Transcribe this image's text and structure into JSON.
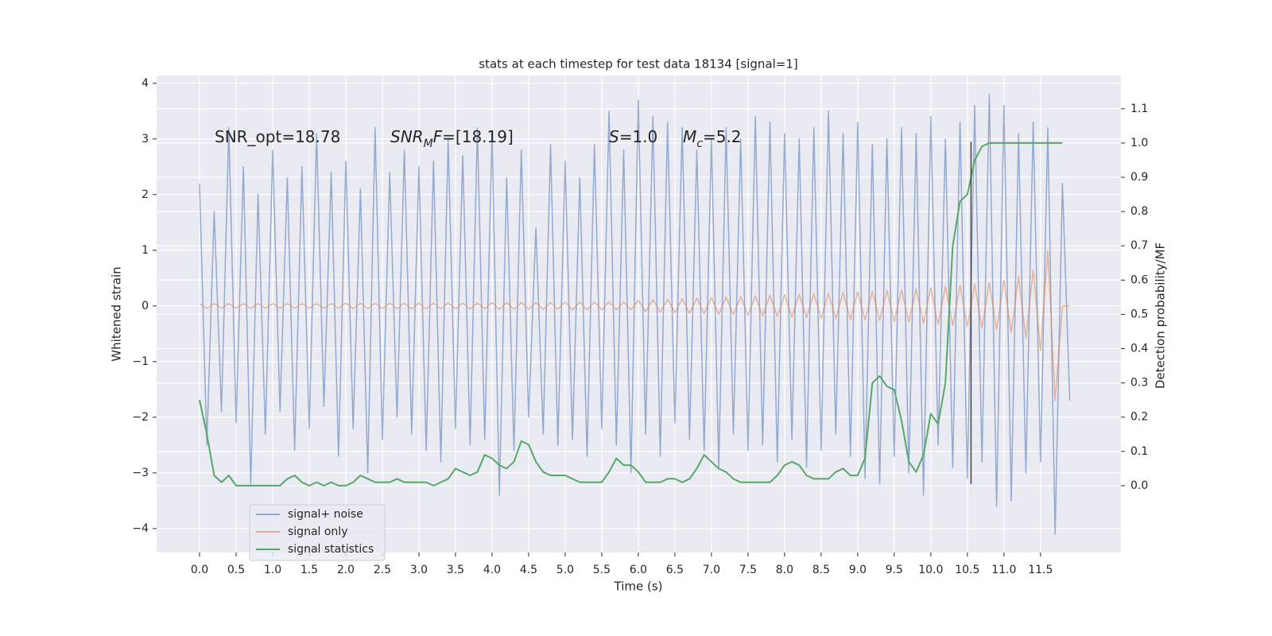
{
  "chart_data": {
    "type": "line",
    "title": "stats at each timestep for test data 18134 [signal=1]",
    "xlabel": "Time (s)",
    "ylabel": "Whitened strain",
    "y2label": "Detection probability/MF",
    "annotations": [
      {
        "text": "SNR_opt=18.78"
      },
      {
        "italic": "SNR",
        "sub": "M",
        "italic2": "F",
        "text": "=[18.19]"
      },
      {
        "italic": "S",
        "text": "=1.0"
      },
      {
        "italic": "M",
        "sub": "c",
        "text": "=5.2"
      }
    ],
    "legend": "lower left",
    "grid": true,
    "xlim": [
      -0.587,
      12.6
    ],
    "ylim": [
      -4.43,
      4.14
    ],
    "y2lim": [
      -0.195,
      1.197
    ],
    "xticks": [
      {
        "value": 0,
        "label": "0.0"
      },
      0.5,
      {
        "value": 1,
        "label": "1.0"
      },
      1.5,
      {
        "value": 2,
        "label": "2.0"
      },
      2.5,
      {
        "value": 3,
        "label": "3.0"
      },
      3.5,
      {
        "value": 4,
        "label": "4.0"
      },
      4.5,
      {
        "value": 5,
        "label": "5.0"
      },
      5.5,
      {
        "value": 6,
        "label": "6.0"
      },
      6.5,
      {
        "value": 7,
        "label": "7.0"
      },
      7.5,
      {
        "value": 8,
        "label": "8.0"
      },
      8.5,
      {
        "value": 9,
        "label": "9.0"
      },
      9.5,
      {
        "value": 10,
        "label": "10.0"
      },
      10.5,
      {
        "value": 11,
        "label": "11.0"
      },
      11.5
    ],
    "yticks": [
      {
        "value": -4,
        "label": "−4"
      },
      {
        "value": -3,
        "label": "−3"
      },
      {
        "value": -2,
        "label": "−2"
      },
      {
        "value": -1,
        "label": "−1"
      },
      0,
      1,
      2,
      3,
      4
    ],
    "y2ticks": [
      {
        "value": 0,
        "label": "0.0"
      },
      0.1,
      0.2,
      0.3,
      0.4,
      0.5,
      0.6,
      0.7,
      0.8,
      0.9,
      {
        "value": 1,
        "label": "1.0"
      },
      1.1
    ],
    "vline": {
      "x": 10.55,
      "ymin": -3.2,
      "ymax": 2.95,
      "color": "#444444"
    },
    "x": [
      0,
      0.1,
      0.2,
      0.3,
      0.4,
      0.5,
      0.6,
      0.7,
      0.8,
      0.9,
      1,
      1.1,
      1.2,
      1.3,
      1.4,
      1.5,
      1.6,
      1.7,
      1.8,
      1.9,
      2,
      2.1,
      2.2,
      2.3,
      2.4,
      2.5,
      2.6,
      2.7,
      2.8,
      2.9,
      3,
      3.1,
      3.2,
      3.3,
      3.4,
      3.5,
      3.6,
      3.7,
      3.8,
      3.9,
      4,
      4.1,
      4.2,
      4.3,
      4.4,
      4.5,
      4.6,
      4.7,
      4.8,
      4.9,
      5,
      5.1,
      5.2,
      5.3,
      5.4,
      5.5,
      5.6,
      5.7,
      5.8,
      5.9,
      6,
      6.1,
      6.2,
      6.3,
      6.4,
      6.5,
      6.6,
      6.7,
      6.8,
      6.9,
      7,
      7.1,
      7.2,
      7.3,
      7.4,
      7.5,
      7.6,
      7.7,
      7.8,
      7.9,
      8,
      8.1,
      8.2,
      8.3,
      8.4,
      8.5,
      8.6,
      8.7,
      8.8,
      8.9,
      9,
      9.1,
      9.2,
      9.3,
      9.4,
      9.5,
      9.6,
      9.7,
      9.8,
      9.9,
      10,
      10.1,
      10.2,
      10.3,
      10.4,
      10.5,
      10.6,
      10.7,
      10.8,
      10.9,
      11,
      11.1,
      11.2,
      11.3,
      11.4,
      11.5,
      11.6,
      11.7,
      11.8,
      11.9
    ],
    "series": [
      {
        "name": "signal+ noise",
        "color": "#4c72b0",
        "values": [
          2.2,
          -2.5,
          1.7,
          -1.9,
          3.2,
          -2.1,
          2.5,
          -3.2,
          2.0,
          -2.3,
          2.8,
          -1.9,
          2.3,
          -2.6,
          2.5,
          -2.2,
          3.1,
          -1.8,
          2.4,
          -2.7,
          2.6,
          -2.2,
          2.1,
          -3.0,
          3.2,
          -2.4,
          2.4,
          -2.0,
          2.8,
          -2.3,
          2.5,
          -2.6,
          2.6,
          -2.8,
          3.0,
          -2.2,
          2.7,
          -2.5,
          3.2,
          -2.4,
          3.1,
          -3.4,
          2.3,
          -2.6,
          2.8,
          -2.0,
          1.4,
          -2.3,
          2.9,
          -2.5,
          2.6,
          -2.4,
          2.3,
          -2.7,
          2.9,
          -2.2,
          3.5,
          -2.5,
          2.8,
          -3.0,
          3.7,
          -2.3,
          3.4,
          -2.7,
          3.3,
          -2.1,
          3.2,
          -2.4,
          2.8,
          -2.6,
          3.0,
          -2.9,
          3.2,
          -2.3,
          3.0,
          -2.6,
          3.4,
          -2.5,
          3.3,
          -2.8,
          3.1,
          -2.4,
          3.0,
          -2.9,
          3.2,
          -2.6,
          3.5,
          -2.3,
          3.1,
          -2.7,
          3.3,
          -3.1,
          2.9,
          -3.2,
          3.0,
          -2.7,
          3.2,
          -3.0,
          3.1,
          -3.4,
          3.4,
          -2.5,
          3.0,
          -2.9,
          3.3,
          -3.1,
          3.6,
          -2.8,
          3.8,
          -3.6,
          3.6,
          -3.5,
          3.1,
          -3.0,
          3.3,
          -2.8,
          3.2,
          -4.1,
          2.2,
          -1.7
        ]
      },
      {
        "name": "signal only",
        "color": "#dd8452",
        "values": [
          0.04,
          -0.04,
          0.04,
          -0.04,
          0.04,
          -0.04,
          0.04,
          -0.04,
          0.04,
          -0.04,
          0.04,
          -0.04,
          0.04,
          -0.04,
          0.04,
          -0.04,
          0.04,
          -0.04,
          0.04,
          -0.04,
          0.05,
          -0.05,
          0.05,
          -0.05,
          0.05,
          -0.05,
          0.05,
          -0.05,
          0.05,
          -0.05,
          0.05,
          -0.05,
          0.05,
          -0.05,
          0.05,
          -0.05,
          0.05,
          -0.05,
          0.05,
          -0.05,
          0.06,
          -0.06,
          0.06,
          -0.06,
          0.06,
          -0.06,
          0.06,
          -0.06,
          0.06,
          -0.06,
          0.07,
          -0.07,
          0.07,
          -0.07,
          0.07,
          -0.07,
          0.07,
          -0.07,
          0.07,
          -0.07,
          0.1,
          -0.1,
          0.11,
          -0.11,
          0.12,
          -0.12,
          0.13,
          -0.13,
          0.14,
          -0.14,
          0.15,
          -0.15,
          0.16,
          -0.16,
          0.17,
          -0.17,
          0.18,
          -0.18,
          0.19,
          -0.19,
          0.2,
          -0.2,
          0.21,
          -0.21,
          0.22,
          -0.22,
          0.23,
          -0.23,
          0.24,
          -0.24,
          0.25,
          -0.25,
          0.26,
          -0.26,
          0.28,
          -0.28,
          0.29,
          -0.29,
          0.31,
          -0.31,
          0.33,
          -0.33,
          0.35,
          -0.35,
          0.37,
          -0.37,
          0.39,
          -0.39,
          0.42,
          -0.42,
          0.46,
          -0.48,
          0.53,
          -0.58,
          0.65,
          -0.8,
          1.0,
          -1.7,
          0,
          0
        ]
      },
      {
        "name": "signal statistics",
        "color": "#55a868",
        "axis": "y2",
        "x": [
          0,
          0.1,
          0.2,
          0.3,
          0.4,
          0.5,
          0.6,
          0.7,
          0.8,
          0.9,
          1,
          1.1,
          1.2,
          1.3,
          1.4,
          1.5,
          1.6,
          1.7,
          1.8,
          1.9,
          2,
          2.1,
          2.2,
          2.3,
          2.4,
          2.5,
          2.6,
          2.7,
          2.8,
          2.9,
          3,
          3.1,
          3.2,
          3.3,
          3.4,
          3.5,
          3.6,
          3.7,
          3.8,
          3.9,
          4,
          4.1,
          4.2,
          4.3,
          4.4,
          4.5,
          4.6,
          4.7,
          4.8,
          4.9,
          5,
          5.1,
          5.2,
          5.3,
          5.4,
          5.5,
          5.6,
          5.7,
          5.8,
          5.9,
          6,
          6.1,
          6.2,
          6.3,
          6.4,
          6.5,
          6.6,
          6.7,
          6.8,
          6.9,
          7,
          7.1,
          7.2,
          7.3,
          7.4,
          7.5,
          7.6,
          7.7,
          7.8,
          7.9,
          8,
          8.1,
          8.2,
          8.3,
          8.4,
          8.5,
          8.6,
          8.7,
          8.8,
          8.9,
          9,
          9.1,
          9.2,
          9.3,
          9.4,
          9.5,
          9.6,
          9.7,
          9.8,
          9.9,
          10,
          10.1,
          10.2,
          10.3,
          10.4,
          10.5,
          10.6,
          10.7,
          10.8,
          10.9,
          11,
          11.1,
          11.2,
          11.3,
          11.4,
          11.5,
          11.6,
          11.7,
          11.8
        ],
        "values": [
          0.25,
          0.15,
          0.03,
          0.01,
          0.03,
          0,
          0,
          0,
          0,
          0,
          0,
          0,
          0.02,
          0.03,
          0.01,
          0,
          0.01,
          0,
          0.01,
          0,
          0,
          0.01,
          0.03,
          0.02,
          0.01,
          0.01,
          0.01,
          0.02,
          0.01,
          0.01,
          0.01,
          0.01,
          0,
          0.01,
          0.02,
          0.05,
          0.04,
          0.03,
          0.04,
          0.09,
          0.08,
          0.06,
          0.05,
          0.07,
          0.13,
          0.12,
          0.07,
          0.04,
          0.03,
          0.03,
          0.03,
          0.02,
          0.01,
          0.01,
          0.01,
          0.01,
          0.04,
          0.08,
          0.06,
          0.06,
          0.04,
          0.01,
          0.01,
          0.01,
          0.02,
          0.02,
          0.01,
          0.02,
          0.05,
          0.09,
          0.07,
          0.05,
          0.04,
          0.02,
          0.01,
          0.01,
          0.01,
          0.01,
          0.01,
          0.03,
          0.06,
          0.07,
          0.06,
          0.03,
          0.02,
          0.02,
          0.02,
          0.04,
          0.05,
          0.03,
          0.03,
          0.08,
          0.3,
          0.32,
          0.29,
          0.28,
          0.19,
          0.07,
          0.04,
          0.09,
          0.21,
          0.18,
          0.3,
          0.7,
          0.83,
          0.85,
          0.95,
          0.99,
          1.0,
          1.0,
          1.0,
          1.0,
          1.0,
          1.0,
          1.0,
          1.0,
          1.0,
          1.0,
          1.0
        ]
      }
    ]
  }
}
